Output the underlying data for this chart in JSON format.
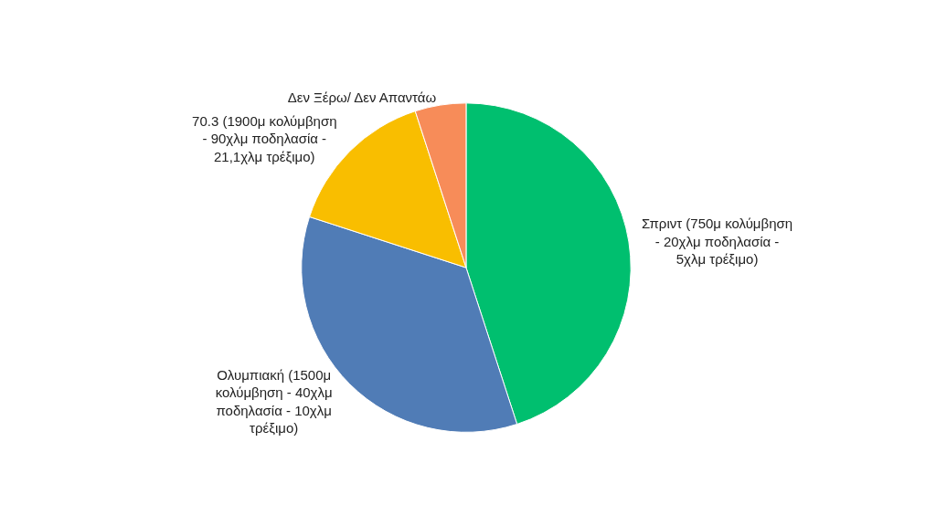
{
  "chart_data": {
    "type": "pie",
    "categories": [
      "Σπριντ (750μ κολύμβηση - 20χλμ ποδηλασία - 5χλμ τρέξιμο)",
      "Ολυμπιακή (1500μ κολύμβηση - 40χλμ ποδηλασία - 10χλμ τρέξιμο)",
      "70.3 (1900μ κολύμβηση - 90χλμ ποδηλασία - 21,1χλμ τρέξιμο)",
      "Δεν Ξέρω/ Δεν Απαντάω"
    ],
    "values": [
      45,
      35,
      15,
      5
    ],
    "colors": [
      "#00bf6f",
      "#507cb6",
      "#f9be00",
      "#f78c59"
    ],
    "legend": false
  }
}
